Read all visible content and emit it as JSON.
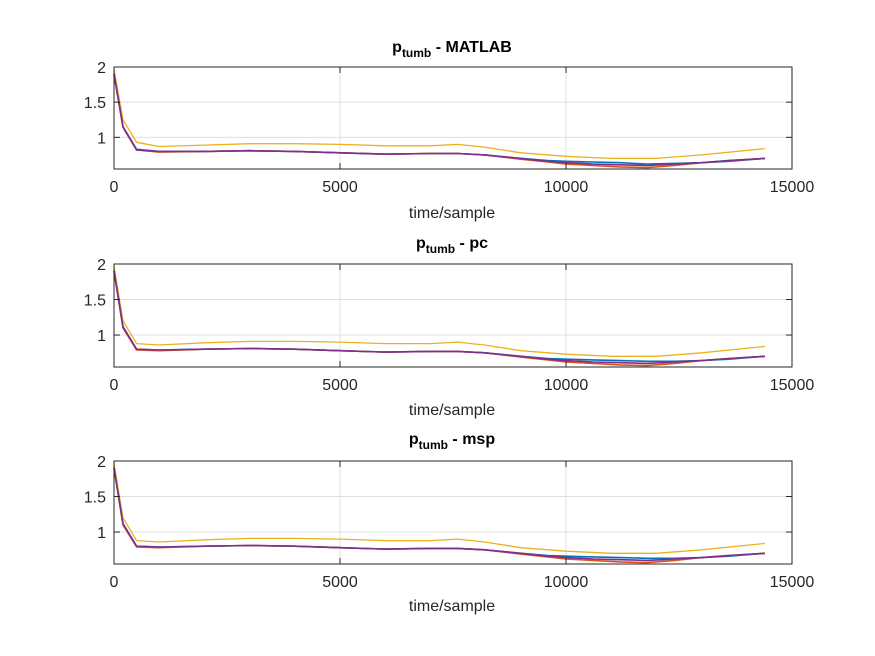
{
  "chart_data": [
    {
      "type": "line",
      "title": {
        "main": "p",
        "sub": "tumb",
        "rest": " - MATLAB"
      },
      "xlabel": "time/sample",
      "ylabel": "",
      "xlim": [
        0,
        15000
      ],
      "ylim": [
        0.55,
        2
      ],
      "xticks": [
        0,
        5000,
        10000,
        15000
      ],
      "yticks": [
        1,
        1.5,
        2
      ],
      "xtick_labels": [
        "0",
        "5000",
        "10000",
        "15000"
      ],
      "ytick_labels": [
        "1",
        "1.5",
        "2"
      ],
      "grid": true,
      "series": [
        {
          "color": "#EDB120",
          "x": [
            0,
            200,
            500,
            1000,
            2000,
            3000,
            4000,
            5000,
            6000,
            7000,
            7600,
            8200,
            9000,
            10000,
            11000,
            12000,
            13000,
            14400
          ],
          "y": [
            1.97,
            1.25,
            0.93,
            0.87,
            0.89,
            0.91,
            0.91,
            0.9,
            0.88,
            0.88,
            0.9,
            0.86,
            0.78,
            0.73,
            0.7,
            0.7,
            0.75,
            0.84
          ]
        },
        {
          "color": "#0072BD",
          "x": [
            0,
            200,
            500,
            1000,
            2000,
            3000,
            4000,
            5000,
            6000,
            7000,
            7600,
            8200,
            9000,
            9600,
            10000,
            10600,
            11200,
            11800,
            12400,
            13000,
            13600,
            14400
          ],
          "y": [
            1.9,
            1.15,
            0.83,
            0.8,
            0.8,
            0.81,
            0.8,
            0.78,
            0.76,
            0.77,
            0.77,
            0.75,
            0.7,
            0.67,
            0.66,
            0.65,
            0.64,
            0.62,
            0.63,
            0.64,
            0.66,
            0.7
          ]
        },
        {
          "color": "#D95319",
          "x": [
            0,
            200,
            500,
            1000,
            2000,
            3000,
            4000,
            5000,
            6000,
            7000,
            7600,
            8200,
            9000,
            9600,
            10000,
            10600,
            11200,
            11800,
            12400,
            13000,
            13600,
            14400
          ],
          "y": [
            1.9,
            1.14,
            0.82,
            0.79,
            0.8,
            0.81,
            0.8,
            0.78,
            0.76,
            0.77,
            0.77,
            0.75,
            0.69,
            0.65,
            0.62,
            0.6,
            0.58,
            0.57,
            0.6,
            0.64,
            0.67,
            0.7
          ]
        },
        {
          "color": "#7E2F8E",
          "x": [
            0,
            200,
            500,
            1000,
            2000,
            3000,
            4000,
            5000,
            6000,
            7000,
            7600,
            8200,
            9000,
            9600,
            10000,
            10600,
            11200,
            11800,
            12400,
            13000,
            13600,
            14400
          ],
          "y": [
            1.9,
            1.15,
            0.82,
            0.8,
            0.8,
            0.81,
            0.8,
            0.78,
            0.76,
            0.77,
            0.77,
            0.75,
            0.7,
            0.66,
            0.64,
            0.62,
            0.61,
            0.6,
            0.62,
            0.64,
            0.67,
            0.7
          ]
        }
      ]
    },
    {
      "type": "line",
      "title": {
        "main": "p",
        "sub": "tumb",
        "rest": " - pc"
      },
      "xlabel": "time/sample",
      "ylabel": "",
      "xlim": [
        0,
        15000
      ],
      "ylim": [
        0.55,
        2
      ],
      "xticks": [
        0,
        5000,
        10000,
        15000
      ],
      "yticks": [
        1,
        1.5,
        2
      ],
      "xtick_labels": [
        "0",
        "5000",
        "10000",
        "15000"
      ],
      "ytick_labels": [
        "1",
        "1.5",
        "2"
      ],
      "grid": true,
      "series": [
        {
          "color": "#EDB120",
          "x": [
            0,
            200,
            500,
            1000,
            2000,
            3000,
            4000,
            5000,
            6000,
            7000,
            7600,
            8200,
            9000,
            10000,
            11000,
            12000,
            13000,
            14400
          ],
          "y": [
            1.97,
            1.2,
            0.88,
            0.86,
            0.89,
            0.91,
            0.91,
            0.9,
            0.88,
            0.88,
            0.9,
            0.86,
            0.78,
            0.73,
            0.7,
            0.7,
            0.75,
            0.84
          ]
        },
        {
          "color": "#0072BD",
          "x": [
            0,
            200,
            500,
            1000,
            2000,
            3000,
            4000,
            5000,
            6000,
            7000,
            7600,
            8200,
            9000,
            9600,
            10000,
            10600,
            11200,
            11800,
            12400,
            13000,
            13600,
            14400
          ],
          "y": [
            1.9,
            1.12,
            0.8,
            0.79,
            0.8,
            0.81,
            0.8,
            0.78,
            0.76,
            0.77,
            0.77,
            0.75,
            0.7,
            0.67,
            0.66,
            0.65,
            0.64,
            0.63,
            0.63,
            0.64,
            0.66,
            0.7
          ]
        },
        {
          "color": "#D95319",
          "x": [
            0,
            200,
            500,
            1000,
            2000,
            3000,
            4000,
            5000,
            6000,
            7000,
            7600,
            8200,
            9000,
            9600,
            10000,
            10600,
            11200,
            11800,
            12400,
            13000,
            13600,
            14400
          ],
          "y": [
            1.9,
            1.1,
            0.79,
            0.78,
            0.8,
            0.81,
            0.8,
            0.78,
            0.76,
            0.77,
            0.77,
            0.75,
            0.69,
            0.65,
            0.62,
            0.6,
            0.58,
            0.57,
            0.6,
            0.64,
            0.67,
            0.7
          ]
        },
        {
          "color": "#7E2F8E",
          "x": [
            0,
            200,
            500,
            1000,
            2000,
            3000,
            4000,
            5000,
            6000,
            7000,
            7600,
            8200,
            9000,
            9600,
            10000,
            10600,
            11200,
            11800,
            12400,
            13000,
            13600,
            14400
          ],
          "y": [
            1.9,
            1.11,
            0.8,
            0.79,
            0.8,
            0.81,
            0.8,
            0.78,
            0.76,
            0.77,
            0.77,
            0.75,
            0.7,
            0.66,
            0.64,
            0.62,
            0.61,
            0.6,
            0.62,
            0.64,
            0.67,
            0.7
          ]
        }
      ]
    },
    {
      "type": "line",
      "title": {
        "main": "p",
        "sub": "tumb",
        "rest": " - msp"
      },
      "xlabel": "time/sample",
      "ylabel": "",
      "xlim": [
        0,
        15000
      ],
      "ylim": [
        0.55,
        2
      ],
      "xticks": [
        0,
        5000,
        10000,
        15000
      ],
      "yticks": [
        1,
        1.5,
        2
      ],
      "xtick_labels": [
        "0",
        "5000",
        "10000",
        "15000"
      ],
      "ytick_labels": [
        "1",
        "1.5",
        "2"
      ],
      "grid": true,
      "series": [
        {
          "color": "#EDB120",
          "x": [
            0,
            200,
            500,
            1000,
            2000,
            3000,
            4000,
            5000,
            6000,
            7000,
            7600,
            8200,
            9000,
            10000,
            11000,
            12000,
            13000,
            14400
          ],
          "y": [
            1.97,
            1.2,
            0.88,
            0.86,
            0.89,
            0.91,
            0.91,
            0.9,
            0.88,
            0.88,
            0.9,
            0.86,
            0.78,
            0.73,
            0.7,
            0.7,
            0.75,
            0.84
          ]
        },
        {
          "color": "#0072BD",
          "x": [
            0,
            200,
            500,
            1000,
            2000,
            3000,
            4000,
            5000,
            6000,
            7000,
            7600,
            8200,
            9000,
            9600,
            10000,
            10600,
            11200,
            11800,
            12400,
            13000,
            13600,
            14400
          ],
          "y": [
            1.9,
            1.12,
            0.8,
            0.79,
            0.8,
            0.81,
            0.8,
            0.78,
            0.76,
            0.77,
            0.77,
            0.75,
            0.7,
            0.67,
            0.66,
            0.65,
            0.64,
            0.63,
            0.63,
            0.64,
            0.66,
            0.7
          ]
        },
        {
          "color": "#D95319",
          "x": [
            0,
            200,
            500,
            1000,
            2000,
            3000,
            4000,
            5000,
            6000,
            7000,
            7600,
            8200,
            9000,
            9600,
            10000,
            10600,
            11200,
            11800,
            12400,
            13000,
            13600,
            14400
          ],
          "y": [
            1.9,
            1.1,
            0.79,
            0.78,
            0.8,
            0.81,
            0.8,
            0.78,
            0.76,
            0.77,
            0.77,
            0.75,
            0.69,
            0.65,
            0.62,
            0.6,
            0.58,
            0.57,
            0.6,
            0.64,
            0.67,
            0.7
          ]
        },
        {
          "color": "#7E2F8E",
          "x": [
            0,
            200,
            500,
            1000,
            2000,
            3000,
            4000,
            5000,
            6000,
            7000,
            7600,
            8200,
            9000,
            9600,
            10000,
            10600,
            11200,
            11800,
            12400,
            13000,
            13600,
            14400
          ],
          "y": [
            1.9,
            1.11,
            0.8,
            0.79,
            0.8,
            0.81,
            0.8,
            0.78,
            0.76,
            0.77,
            0.77,
            0.75,
            0.7,
            0.66,
            0.64,
            0.62,
            0.61,
            0.6,
            0.62,
            0.64,
            0.67,
            0.7
          ]
        }
      ]
    }
  ]
}
